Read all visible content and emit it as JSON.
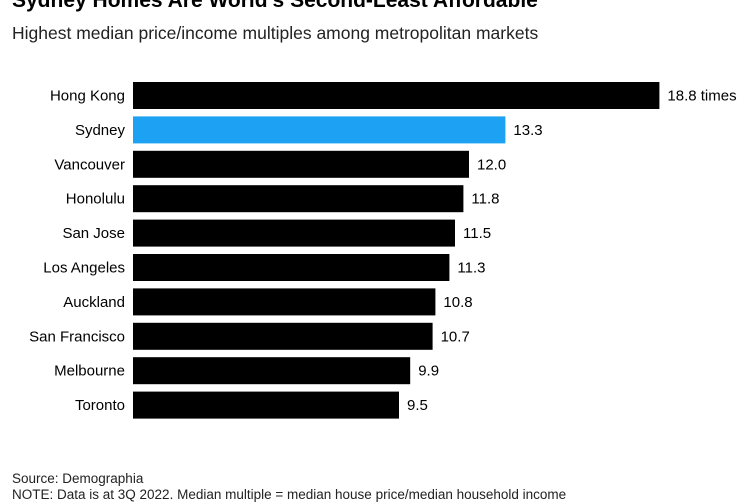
{
  "chart_data": {
    "type": "bar",
    "orientation": "horizontal",
    "title": "Sydney Homes Are World's Second-Least Affordable",
    "subtitle": "Highest median price/income multiples among metropolitan markets",
    "categories": [
      "Hong Kong",
      "Sydney",
      "Vancouver",
      "Honolulu",
      "San Jose",
      "Los Angeles",
      "Auckland",
      "San Francisco",
      "Melbourne",
      "Toronto"
    ],
    "values": [
      18.8,
      13.3,
      12.0,
      11.8,
      11.5,
      11.3,
      10.8,
      10.7,
      9.9,
      9.5
    ],
    "value_labels": [
      "18.8 times",
      "13.3",
      "12.0",
      "11.8",
      "11.5",
      "11.3",
      "10.8",
      "10.7",
      "9.9",
      "9.5"
    ],
    "bar_color": "#000000",
    "highlight_category": "Sydney",
    "highlight_color": "#1da1f2",
    "grid": false,
    "legend": "none"
  },
  "footer": {
    "source": "Source: Demographia",
    "note": "NOTE: Data is at 3Q 2022. Median multiple = median house price/median household income"
  }
}
